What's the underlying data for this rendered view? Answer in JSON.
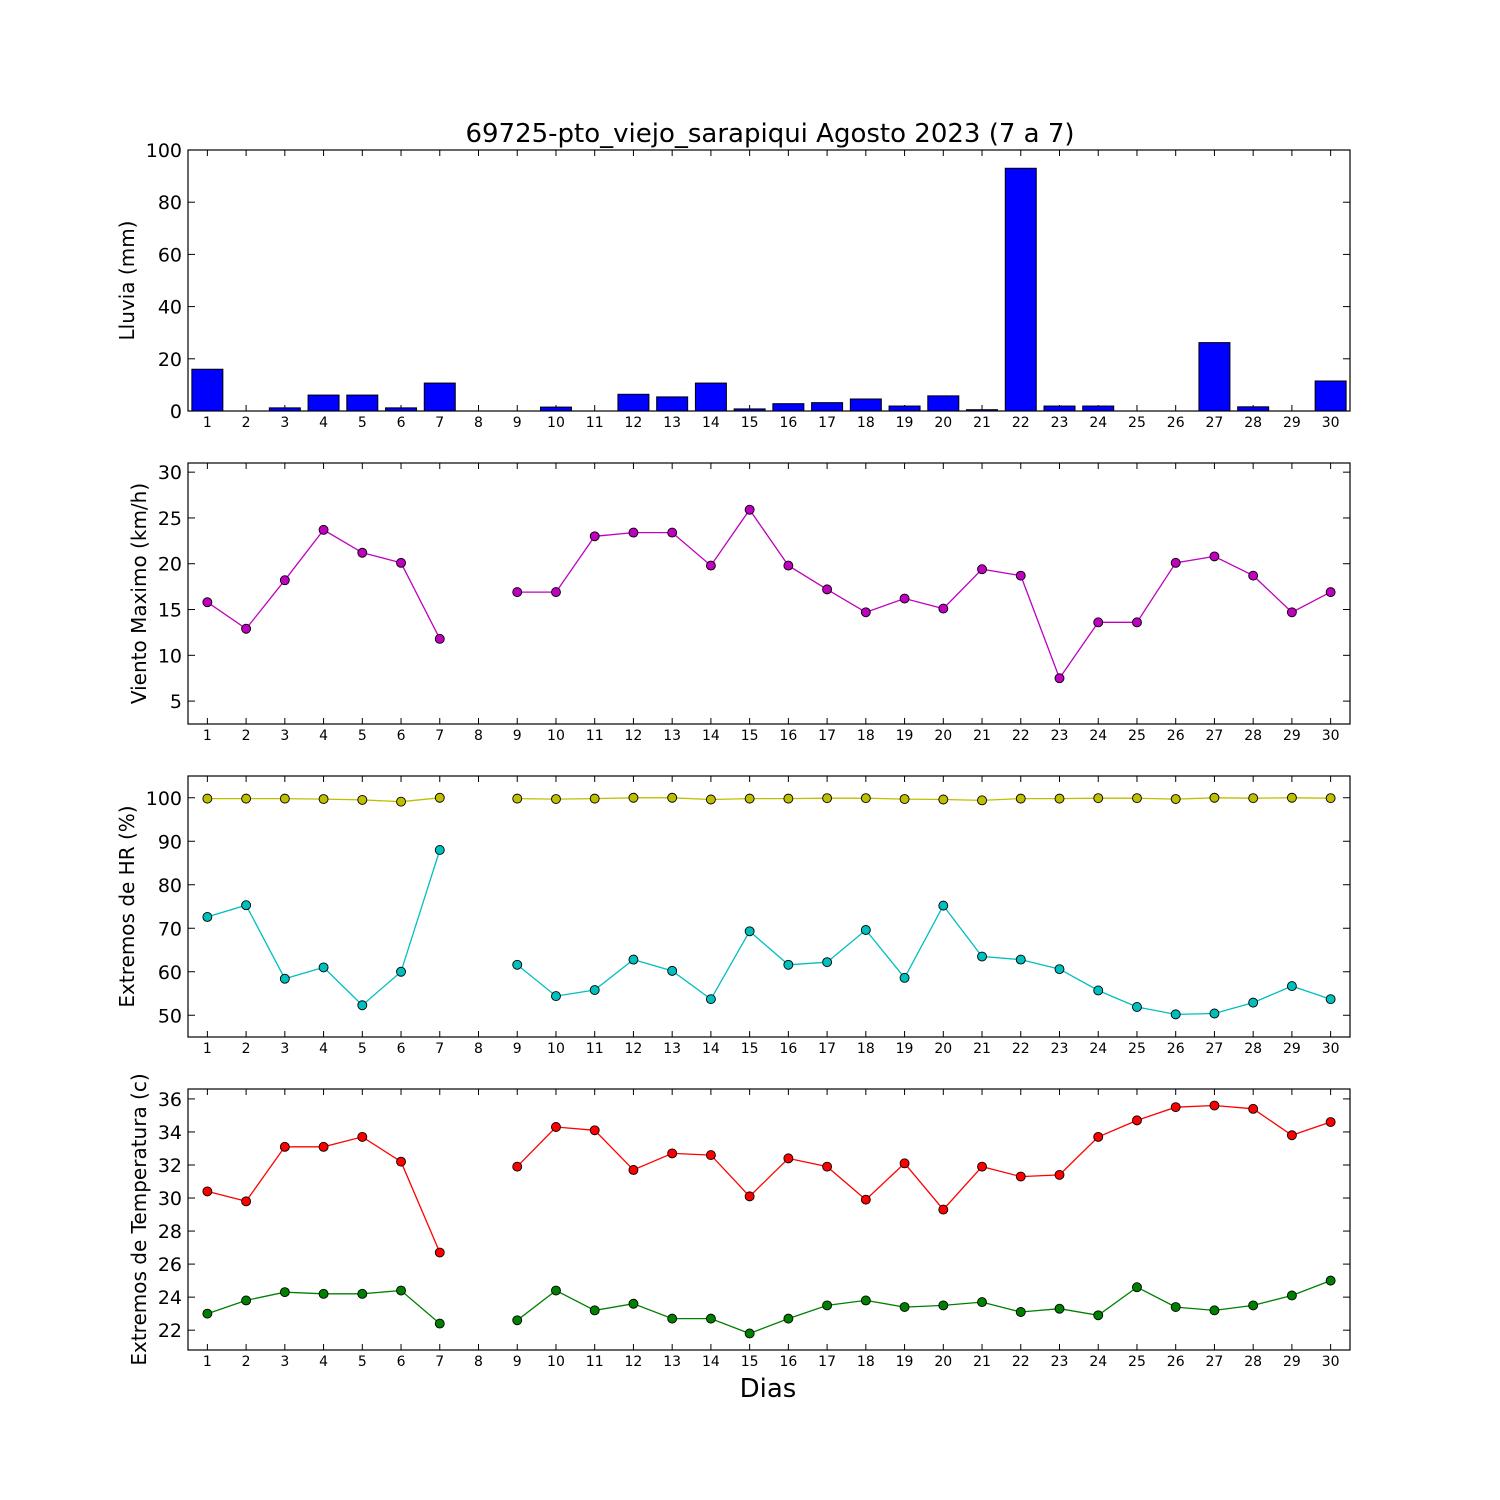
{
  "figure": {
    "title": "69725-pto_viejo_sarapiqui Agosto 2023  (7 a 7)",
    "xlabel": "Dias"
  },
  "chart_data": [
    {
      "type": "bar",
      "ylabel": "Lluvia (mm)",
      "ylim": [
        0,
        100
      ],
      "yticks": [
        0,
        20,
        40,
        60,
        80,
        100
      ],
      "categories": [
        1,
        2,
        3,
        4,
        5,
        6,
        7,
        8,
        9,
        10,
        11,
        12,
        13,
        14,
        15,
        16,
        17,
        18,
        19,
        20,
        21,
        22,
        23,
        24,
        25,
        26,
        27,
        28,
        29,
        30
      ],
      "series": [
        {
          "color": "#0000ff",
          "values": [
            16.0,
            0,
            1.2,
            6.1,
            6.1,
            1.2,
            10.7,
            0,
            0,
            1.5,
            0,
            6.4,
            5.4,
            10.7,
            0.8,
            2.8,
            3.2,
            4.6,
            1.9,
            5.8,
            0.5,
            93.0,
            1.9,
            1.9,
            0,
            0,
            26.2,
            1.6,
            0,
            11.5
          ]
        }
      ]
    },
    {
      "type": "line",
      "ylabel": "Viento Maximo (km/h)",
      "ylim": [
        2.5,
        31
      ],
      "yticks": [
        5,
        10,
        15,
        20,
        25,
        30
      ],
      "x": [
        1,
        2,
        3,
        4,
        5,
        6,
        7,
        8,
        9,
        10,
        11,
        12,
        13,
        14,
        15,
        16,
        17,
        18,
        19,
        20,
        21,
        22,
        23,
        24,
        25,
        26,
        27,
        28,
        29,
        30
      ],
      "series": [
        {
          "color": "#bf00bf",
          "values": [
            15.8,
            12.9,
            18.2,
            23.7,
            21.2,
            20.1,
            11.8,
            null,
            16.9,
            16.9,
            23.0,
            23.4,
            23.4,
            19.8,
            25.9,
            19.8,
            17.2,
            14.7,
            16.2,
            15.1,
            19.4,
            18.7,
            7.5,
            13.6,
            13.6,
            20.1,
            20.8,
            18.7,
            14.7,
            16.9
          ]
        }
      ]
    },
    {
      "type": "line",
      "ylabel": "Extremos de HR (%)",
      "ylim": [
        45,
        105
      ],
      "yticks": [
        50,
        60,
        70,
        80,
        90,
        100
      ],
      "x": [
        1,
        2,
        3,
        4,
        5,
        6,
        7,
        8,
        9,
        10,
        11,
        12,
        13,
        14,
        15,
        16,
        17,
        18,
        19,
        20,
        21,
        22,
        23,
        24,
        25,
        26,
        27,
        28,
        29,
        30
      ],
      "series": [
        {
          "color": "#bfbf00",
          "values": [
            99.8,
            99.8,
            99.8,
            99.7,
            99.5,
            99.1,
            100.0,
            null,
            99.8,
            99.7,
            99.8,
            100.0,
            100.0,
            99.6,
            99.8,
            99.8,
            99.9,
            99.9,
            99.7,
            99.6,
            99.4,
            99.8,
            99.8,
            99.9,
            99.9,
            99.7,
            100.0,
            99.9,
            100.0,
            99.9
          ]
        },
        {
          "color": "#00bfbf",
          "values": [
            72.6,
            75.3,
            58.4,
            61.0,
            52.3,
            60.0,
            88.0,
            null,
            61.6,
            54.4,
            55.8,
            62.8,
            60.2,
            53.7,
            69.3,
            61.6,
            62.2,
            69.6,
            58.6,
            75.2,
            63.5,
            62.8,
            60.6,
            55.7,
            51.9,
            50.2,
            50.4,
            52.9,
            56.7,
            53.7
          ]
        }
      ]
    },
    {
      "type": "line",
      "ylabel": "Extremos de Temperatura (c)",
      "ylim": [
        20.8,
        36.6
      ],
      "yticks": [
        22,
        24,
        26,
        28,
        30,
        32,
        34,
        36
      ],
      "x": [
        1,
        2,
        3,
        4,
        5,
        6,
        7,
        8,
        9,
        10,
        11,
        12,
        13,
        14,
        15,
        16,
        17,
        18,
        19,
        20,
        21,
        22,
        23,
        24,
        25,
        26,
        27,
        28,
        29,
        30
      ],
      "series": [
        {
          "color": "#ff0000",
          "values": [
            30.4,
            29.8,
            33.1,
            33.1,
            33.7,
            32.2,
            26.7,
            null,
            31.9,
            34.3,
            34.1,
            31.7,
            32.7,
            32.6,
            30.1,
            32.4,
            31.9,
            29.9,
            32.1,
            29.3,
            31.9,
            31.3,
            31.4,
            33.7,
            34.7,
            35.5,
            35.6,
            35.4,
            33.8,
            34.6
          ]
        },
        {
          "color": "#008000",
          "values": [
            23.0,
            23.8,
            24.3,
            24.2,
            24.2,
            24.4,
            22.4,
            null,
            22.6,
            24.4,
            23.2,
            23.6,
            22.7,
            22.7,
            21.8,
            22.7,
            23.5,
            23.8,
            23.4,
            23.5,
            23.7,
            23.1,
            23.3,
            22.9,
            24.6,
            23.4,
            23.2,
            23.5,
            24.1,
            25.0
          ]
        }
      ]
    }
  ]
}
